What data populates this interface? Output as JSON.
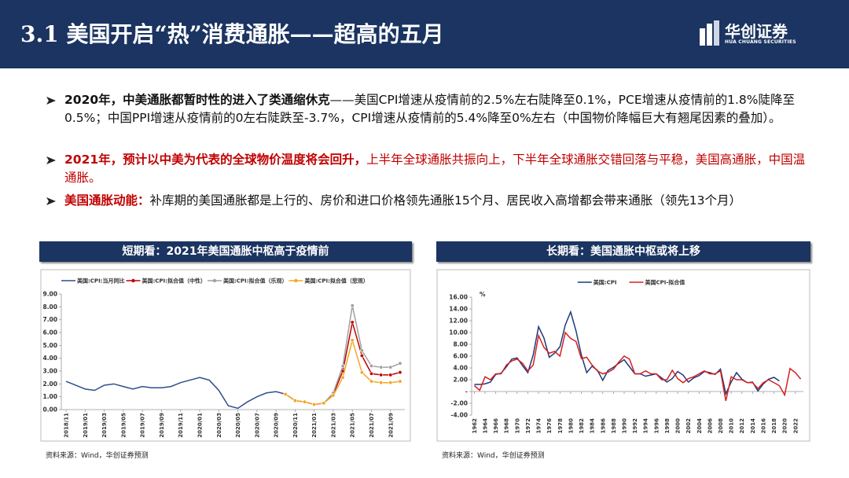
{
  "header": {
    "title": "3.1 美国开启“热”消费通胀——超高的五月",
    "logo": "华创证券",
    "logo_en": "HUA CHUANG SECURITIES"
  },
  "bullets": [
    {
      "bold": "2020年，中美通胀都暂时性的进入了类通缩休克",
      "text": "——美国CPI增速从疫情前的2.5%左右陡降至0.1%，PCE增速从疫情前的1.8%陡降至0.5%；中国PPI增速从疫情前的0左右陡跌至-3.7%，CPI增速从疫情前的5.4%降至0%左右（中国物价降幅巨大有翘尾因素的叠加）。"
    },
    {
      "bold_red": "2021年，预计以中美为代表的全球物价温度将会回升，",
      "red": "上半年全球通胀共振向上，下半年全球通胀交错回落与平稳，美国高通胀，中国温通胀。"
    },
    {
      "bold_red": "美国通胀动能：",
      "text": "补库期的美国通胀都是上行的、房价和进口价格领先通胀15个月、居民收入高增都会带来通胀（领先13个月）"
    }
  ],
  "panels": [
    {
      "heading": "短期看：2021年美国通胀中枢高于疫情前",
      "source": "资料来源：Wind，华创证券预测"
    },
    {
      "heading": "长期看：美国通胀中枢或将上移",
      "source": "资料来源：Wind，华创证券预测"
    }
  ],
  "chart_data": [
    {
      "type": "line",
      "categories": [
        "2018/11",
        null,
        "2019/01",
        null,
        "2019/03",
        null,
        "2019/05",
        null,
        "2019/07",
        null,
        "2019/09",
        null,
        "2019/11",
        null,
        "2020/01",
        null,
        "2020/03",
        null,
        "2020/05",
        null,
        "2020/07",
        null,
        "2020/09",
        null,
        "2020/11",
        null,
        "2021/01",
        null,
        "2021/03",
        null,
        "2021/05",
        null,
        "2021/07",
        null,
        "2021/09",
        null
      ],
      "series": [
        {
          "name": "美国:CPI:当月同比",
          "color": "#2f4e8f",
          "marker": false,
          "values": [
            2.2,
            1.9,
            1.6,
            1.5,
            1.9,
            2.0,
            1.8,
            1.6,
            1.8,
            1.7,
            1.7,
            1.8,
            2.1,
            2.3,
            2.5,
            2.3,
            1.5,
            0.3,
            0.1,
            0.6,
            1.0,
            1.3,
            1.4,
            1.2,
            null,
            null,
            null,
            null,
            null,
            null,
            null,
            null,
            null,
            null,
            null,
            null
          ]
        },
        {
          "name": "美国:CPI:拟合值（中性）",
          "color": "#c00000",
          "marker": true,
          "values": [
            null,
            null,
            null,
            null,
            null,
            null,
            null,
            null,
            null,
            null,
            null,
            null,
            null,
            null,
            null,
            null,
            null,
            null,
            null,
            null,
            null,
            null,
            null,
            1.2,
            0.7,
            0.6,
            0.4,
            0.5,
            1.2,
            3.0,
            6.8,
            4.2,
            2.8,
            2.7,
            2.7,
            2.9
          ]
        },
        {
          "name": "美国:CPI:拟合值（乐观）",
          "color": "#a0a0a0",
          "marker": true,
          "values": [
            null,
            null,
            null,
            null,
            null,
            null,
            null,
            null,
            null,
            null,
            null,
            null,
            null,
            null,
            null,
            null,
            null,
            null,
            null,
            null,
            null,
            null,
            null,
            1.2,
            0.7,
            0.6,
            0.4,
            0.5,
            1.3,
            3.4,
            8.1,
            4.6,
            3.4,
            3.3,
            3.3,
            3.6
          ]
        },
        {
          "name": "美国:CPI:拟合值（悲观）",
          "color": "#f5a623",
          "marker": true,
          "values": [
            null,
            null,
            null,
            null,
            null,
            null,
            null,
            null,
            null,
            null,
            null,
            null,
            null,
            null,
            null,
            null,
            null,
            null,
            null,
            null,
            null,
            null,
            null,
            1.2,
            0.7,
            0.6,
            0.4,
            0.5,
            1.1,
            2.5,
            5.4,
            2.9,
            2.2,
            2.1,
            2.1,
            2.2
          ]
        }
      ],
      "ylim": [
        0,
        9
      ],
      "yticks": [
        {
          "value": 0,
          "label": "0.00"
        },
        {
          "value": 1,
          "label": "1.00"
        },
        {
          "value": 2,
          "label": "2.00"
        },
        {
          "value": 3,
          "label": "3.00"
        },
        {
          "value": 4,
          "label": "4.00"
        },
        {
          "value": 5,
          "label": "5.00"
        },
        {
          "value": 6,
          "label": "6.00"
        },
        {
          "value": 7,
          "label": "7.00"
        },
        {
          "value": 8,
          "label": "8.00"
        },
        {
          "value": 9,
          "label": "9.00"
        }
      ],
      "grid": false,
      "legend": "top-left"
    },
    {
      "type": "line",
      "unit": "%",
      "categories": [
        "1962",
        null,
        "1964",
        null,
        "1966",
        null,
        "1968",
        null,
        "1970",
        null,
        "1972",
        null,
        "1974",
        null,
        "1976",
        null,
        "1978",
        null,
        "1980",
        null,
        "1982",
        null,
        "1984",
        null,
        "1986",
        null,
        "1988",
        null,
        "1990",
        null,
        "1992",
        null,
        "1994",
        null,
        "1996",
        null,
        "1998",
        null,
        "2000",
        null,
        "2002",
        null,
        "2004",
        null,
        "2006",
        null,
        "2008",
        null,
        "2010",
        null,
        "2012",
        null,
        "2014",
        null,
        "2016",
        null,
        "2018",
        null,
        "2020",
        null,
        "2022",
        null
      ],
      "series": [
        {
          "name": "美国:CPI",
          "color": "#1f3a7a",
          "marker": false,
          "values": [
            1.2,
            1.2,
            1.3,
            1.6,
            2.9,
            3.1,
            4.2,
            5.5,
            5.7,
            4.4,
            3.2,
            6.2,
            11.0,
            9.1,
            5.8,
            6.5,
            7.6,
            11.3,
            13.5,
            10.3,
            6.2,
            3.2,
            4.3,
            3.6,
            1.9,
            3.6,
            4.1,
            4.8,
            5.4,
            4.2,
            3.0,
            3.0,
            2.6,
            2.8,
            3.0,
            2.3,
            1.6,
            2.2,
            3.4,
            2.8,
            1.6,
            2.3,
            2.7,
            3.4,
            3.2,
            2.9,
            3.8,
            -0.4,
            1.6,
            3.2,
            2.1,
            1.5,
            1.6,
            0.1,
            1.3,
            2.1,
            2.4,
            1.8,
            null,
            null,
            null,
            null
          ]
        },
        {
          "name": "美国CPI-拟合值",
          "color": "#d62020",
          "marker": false,
          "values": [
            1.0,
            0.2,
            2.5,
            2.0,
            3.0,
            3.0,
            4.5,
            5.2,
            5.5,
            4.8,
            3.5,
            4.5,
            9.5,
            7.5,
            6.5,
            6.8,
            6.0,
            10.0,
            9.0,
            8.5,
            5.6,
            5.8,
            4.5,
            3.5,
            3.0,
            3.3,
            3.8,
            5.0,
            6.0,
            5.5,
            3.0,
            3.0,
            3.5,
            3.0,
            3.0,
            2.0,
            2.0,
            3.6,
            2.2,
            1.5,
            2.2,
            2.5,
            3.0,
            3.5,
            3.0,
            3.0,
            3.5,
            -1.6,
            2.5,
            2.0,
            2.0,
            1.5,
            1.5,
            0.5,
            1.5,
            2.0,
            1.5,
            1.0,
            -0.6,
            3.9,
            3.2,
            2.1
          ]
        }
      ],
      "ylim": [
        -4,
        16
      ],
      "yticks": [
        {
          "value": -4,
          "label": "-4.00"
        },
        {
          "value": -2,
          "label": "-2.00"
        },
        {
          "value": 0,
          "label": "-"
        },
        {
          "value": 2,
          "label": "2.00"
        },
        {
          "value": 4,
          "label": "4.00"
        },
        {
          "value": 6,
          "label": "6.00"
        },
        {
          "value": 8,
          "label": "8.00"
        },
        {
          "value": 10,
          "label": "10.00"
        },
        {
          "value": 12,
          "label": "12.00"
        },
        {
          "value": 14,
          "label": "14.00"
        },
        {
          "value": 16,
          "label": "16.00"
        }
      ],
      "grid": false,
      "legend": "top-center"
    }
  ]
}
